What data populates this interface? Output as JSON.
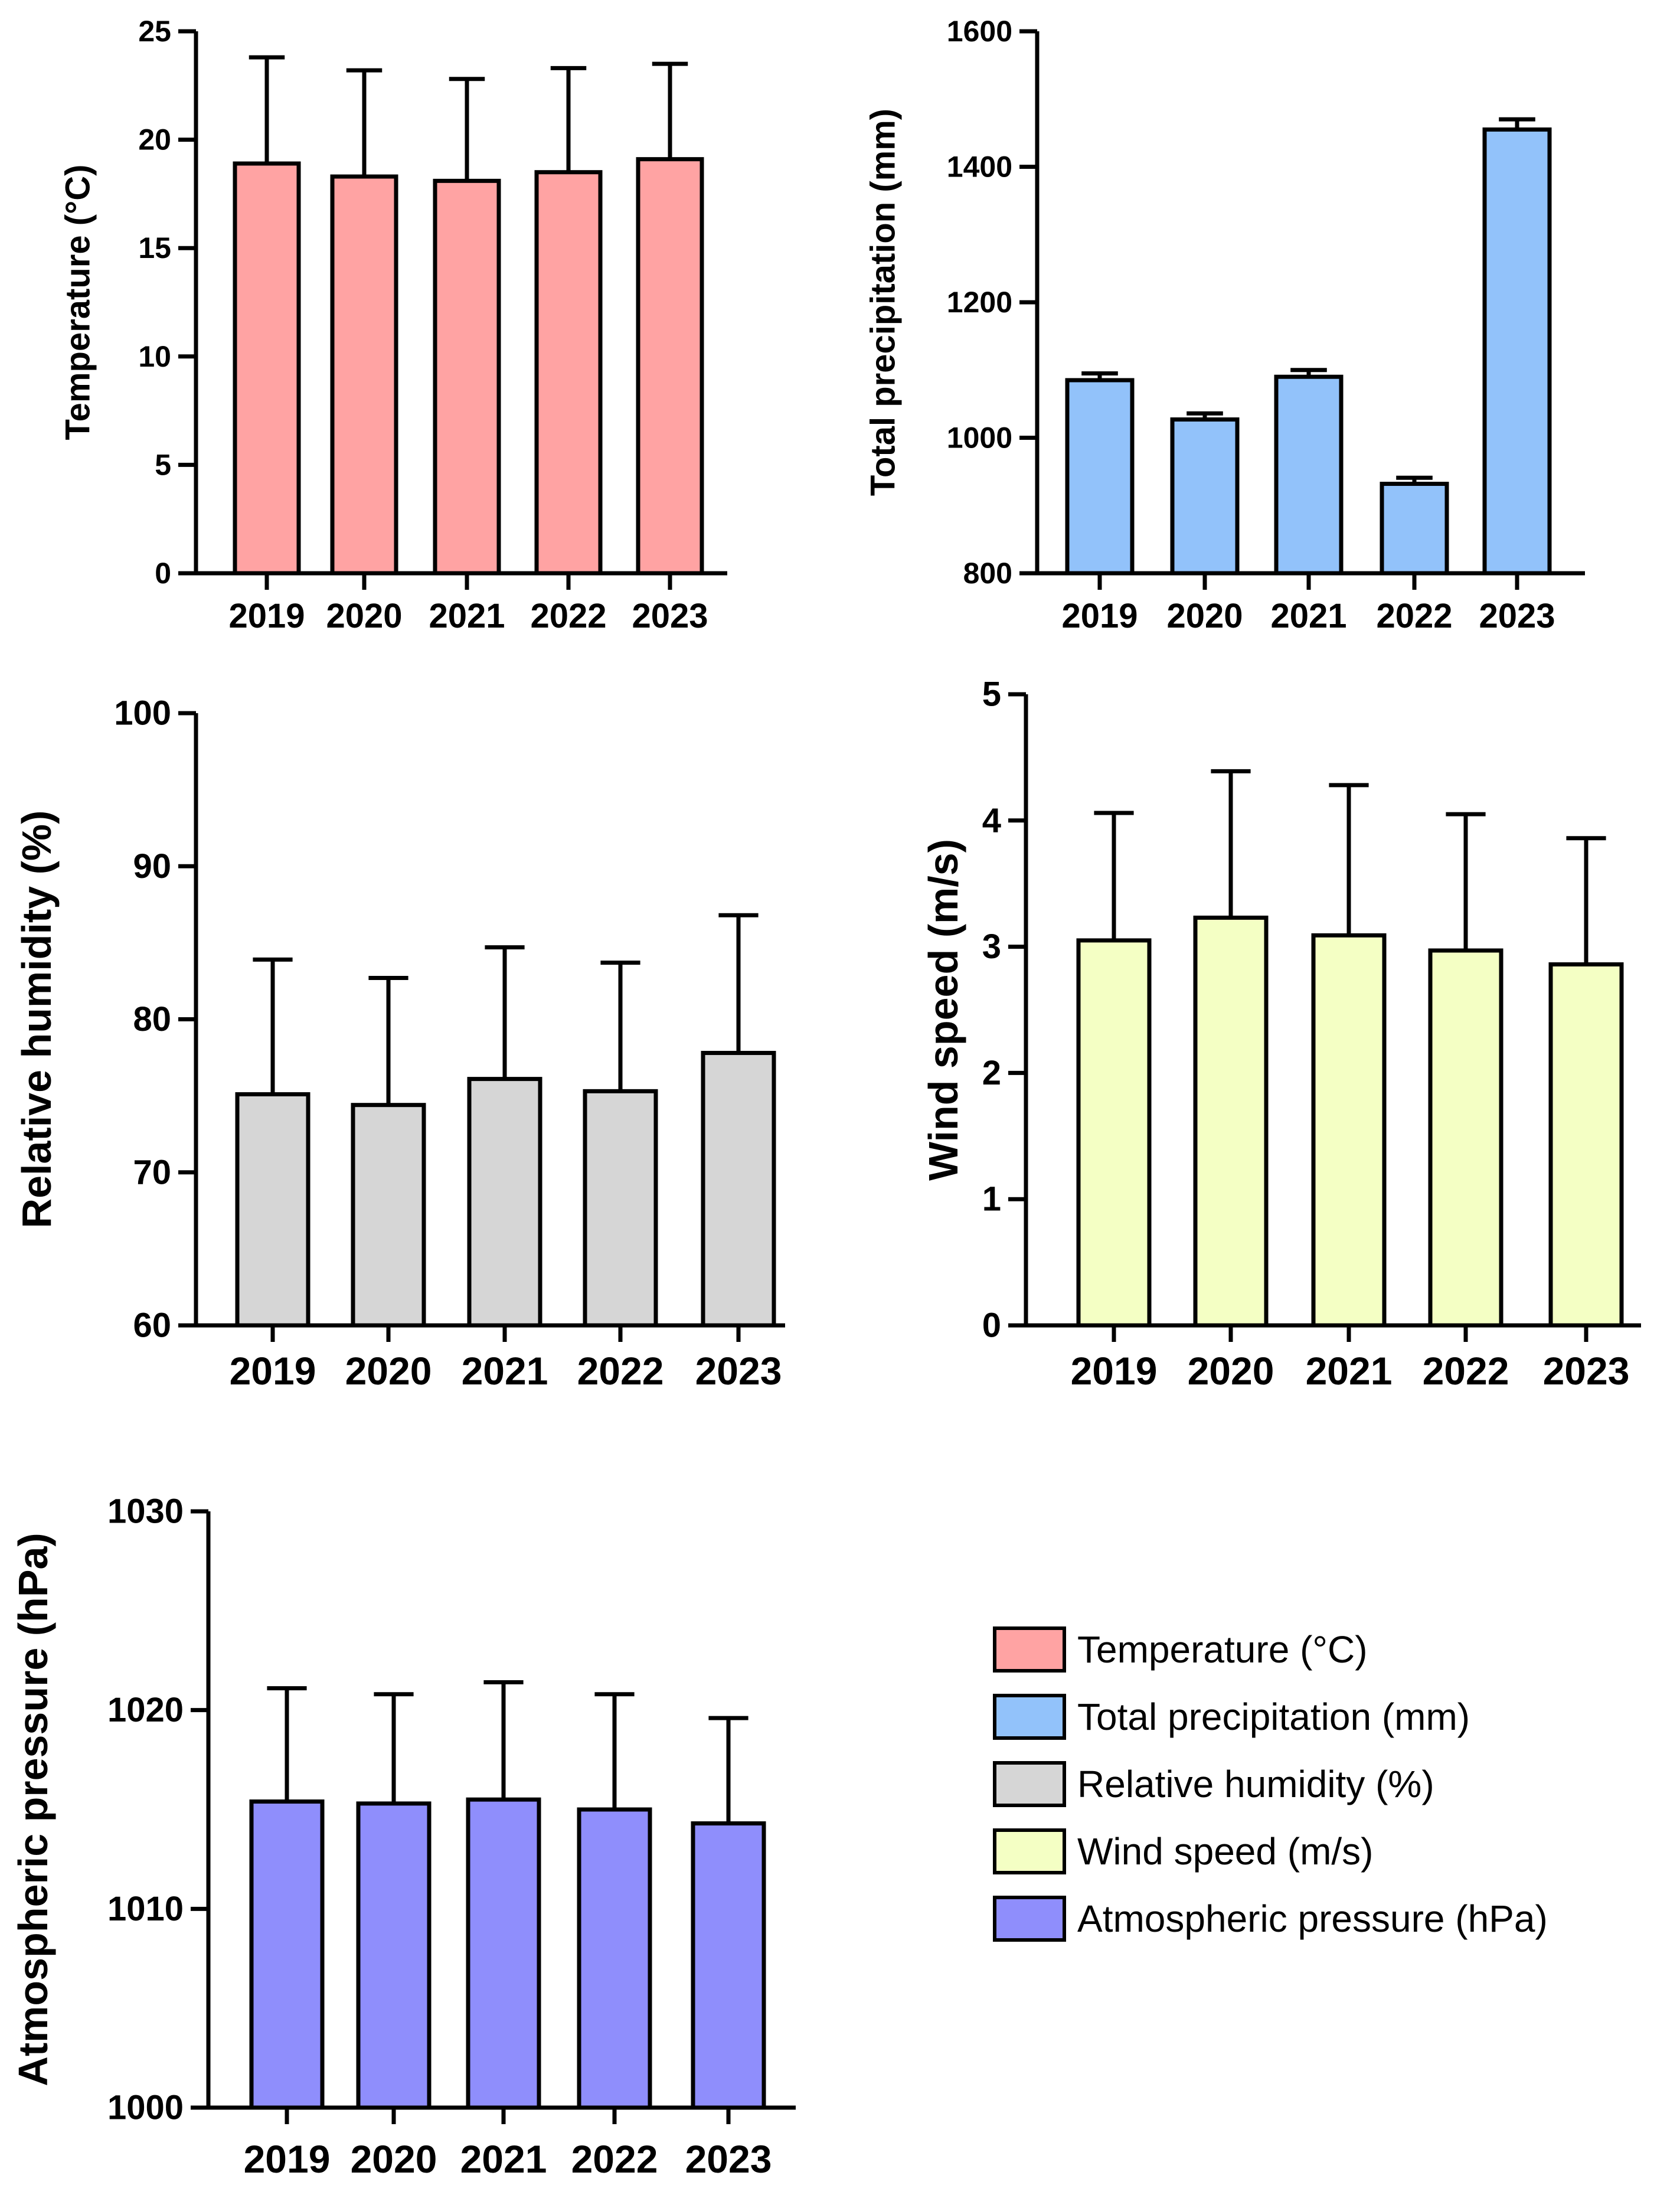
{
  "chart_data": [
    {
      "id": "temperature",
      "type": "bar",
      "title": "",
      "xlabel": "",
      "ylabel": "Temperature (°C)",
      "categories": [
        "2019",
        "2020",
        "2021",
        "2022",
        "2023"
      ],
      "values": [
        18.9,
        18.3,
        18.1,
        18.5,
        19.1
      ],
      "error_plus": [
        4.9,
        4.9,
        4.7,
        4.8,
        4.4
      ],
      "ylim": [
        0,
        25
      ],
      "yticks": [
        0,
        5,
        10,
        15,
        20,
        25
      ],
      "color": "#FFA3A3"
    },
    {
      "id": "precipitation",
      "type": "bar",
      "title": "",
      "xlabel": "",
      "ylabel": "Total precipitation (mm)",
      "categories": [
        "2019",
        "2020",
        "2021",
        "2022",
        "2023"
      ],
      "values": [
        1085,
        1027,
        1090,
        932,
        1455
      ],
      "error_plus": [
        10,
        9,
        10,
        9,
        15
      ],
      "ylim": [
        800,
        1600
      ],
      "yticks": [
        800,
        1000,
        1200,
        1400,
        1600
      ],
      "color": "#92C2FA"
    },
    {
      "id": "humidity",
      "type": "bar",
      "title": "",
      "xlabel": "",
      "ylabel": "Relative humidity (%)",
      "categories": [
        "2019",
        "2020",
        "2021",
        "2022",
        "2023"
      ],
      "values": [
        75.1,
        74.4,
        76.1,
        75.3,
        77.8
      ],
      "error_plus": [
        8.8,
        8.3,
        8.6,
        8.4,
        9.0
      ],
      "ylim": [
        60,
        100
      ],
      "yticks": [
        60,
        70,
        80,
        90,
        100
      ],
      "color": "#D6D6D6"
    },
    {
      "id": "wind",
      "type": "bar",
      "title": "",
      "xlabel": "",
      "ylabel": "Wind speed (m/s)",
      "categories": [
        "2019",
        "2020",
        "2021",
        "2022",
        "2023"
      ],
      "values": [
        3.05,
        3.23,
        3.09,
        2.97,
        2.86
      ],
      "error_plus": [
        1.01,
        1.16,
        1.19,
        1.08,
        1.0
      ],
      "ylim": [
        0,
        5
      ],
      "yticks": [
        0,
        1,
        2,
        3,
        4,
        5
      ],
      "color": "#F4FFC4"
    },
    {
      "id": "pressure",
      "type": "bar",
      "title": "",
      "xlabel": "",
      "ylabel": "Atmospheric pressure (hPa)",
      "categories": [
        "2019",
        "2020",
        "2021",
        "2022",
        "2023"
      ],
      "values": [
        1015.4,
        1015.3,
        1015.5,
        1015.0,
        1014.3
      ],
      "error_plus": [
        5.7,
        5.5,
        5.9,
        5.8,
        5.3
      ],
      "ylim": [
        1000,
        1030
      ],
      "yticks": [
        1000,
        1010,
        1020,
        1030
      ],
      "color": "#8F8EFC"
    }
  ],
  "legend": {
    "placement": "bottom-right",
    "items": [
      {
        "label": "Temperature (°C)",
        "color": "#FFA3A3"
      },
      {
        "label": "Total precipitation (mm)",
        "color": "#92C2FA"
      },
      {
        "label": "Relative humidity (%)",
        "color": "#D6D6D6"
      },
      {
        "label": "Wind speed (m/s)",
        "color": "#F4FFC4"
      },
      {
        "label": "Atmospheric pressure (hPa)",
        "color": "#8F8EFC"
      }
    ]
  }
}
